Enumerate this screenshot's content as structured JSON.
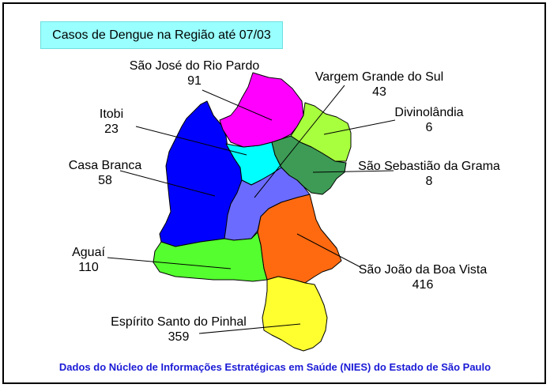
{
  "title": "Casos de Dengue na Região até 07/03",
  "source": "Dados do Núcleo de Informações Estratégicas em Saúde (NIES) do Estado de São Paulo",
  "regions": [
    {
      "id": "sao-jose-do-rio-pardo",
      "name": "São José do Rio Pardo",
      "cases": "91",
      "color": "#ff00ff"
    },
    {
      "id": "vargem-grande-do-sul",
      "name": "Vargem Grande do Sul",
      "cases": "43",
      "color": "#6b6bff"
    },
    {
      "id": "itobi",
      "name": "Itobi",
      "cases": "23",
      "color": "#00ffff"
    },
    {
      "id": "divinolandia",
      "name": "Divinolândia",
      "cases": "6",
      "color": "#a8ff3e"
    },
    {
      "id": "casa-branca",
      "name": "Casa Branca",
      "cases": "58",
      "color": "#0000ff"
    },
    {
      "id": "sao-sebastiao-da-grama",
      "name": "São Sebastião da Grama",
      "cases": "8",
      "color": "#3d9b55"
    },
    {
      "id": "aguai",
      "name": "Aguaí",
      "cases": "110",
      "color": "#55ff2f"
    },
    {
      "id": "sao-joao-da-boa-vista",
      "name": "São João da Boa Vista",
      "cases": "416",
      "color": "#ff6a10"
    },
    {
      "id": "espirito-santo-do-pinhal",
      "name": "Espírito Santo do Pinhal",
      "cases": "359",
      "color": "#ffff30"
    }
  ]
}
